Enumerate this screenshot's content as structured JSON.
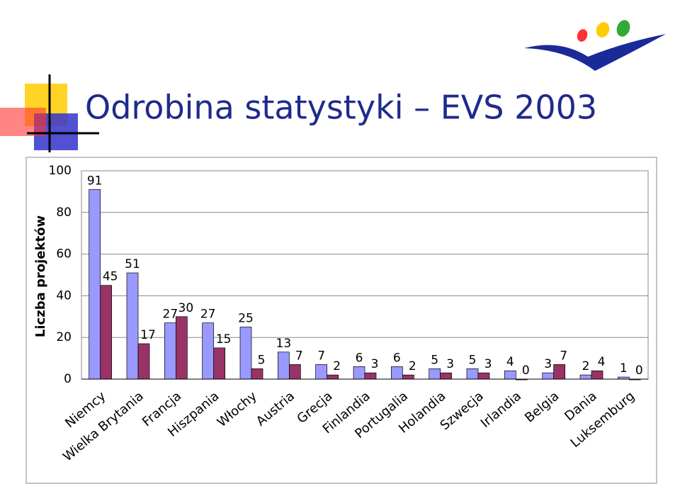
{
  "chart_data": {
    "type": "bar",
    "title": "Odrobina statystyki – EVS 2003",
    "y_label": "Liczba projektów",
    "categories": [
      "Niemcy",
      "Wielka Brytania",
      "Francja",
      "Hiszpania",
      "Włochy",
      "Austria",
      "Grecja",
      "Finlandia",
      "Portugalia",
      "Holandia",
      "Szwecja",
      "Irlandia",
      "Belgia",
      "Dania",
      "Luksemburg"
    ],
    "series": [
      {
        "color": "#9999ff",
        "values": [
          91,
          51,
          27,
          27,
          25,
          13,
          7,
          6,
          6,
          5,
          5,
          4,
          3,
          2,
          1
        ]
      },
      {
        "color": "#993366",
        "values": [
          45,
          17,
          30,
          15,
          5,
          7,
          2,
          3,
          2,
          3,
          3,
          0,
          7,
          4,
          0
        ]
      }
    ],
    "ylim": [
      0,
      100
    ],
    "yticks": [
      0,
      20,
      40,
      60,
      80,
      100
    ],
    "grid": true
  }
}
